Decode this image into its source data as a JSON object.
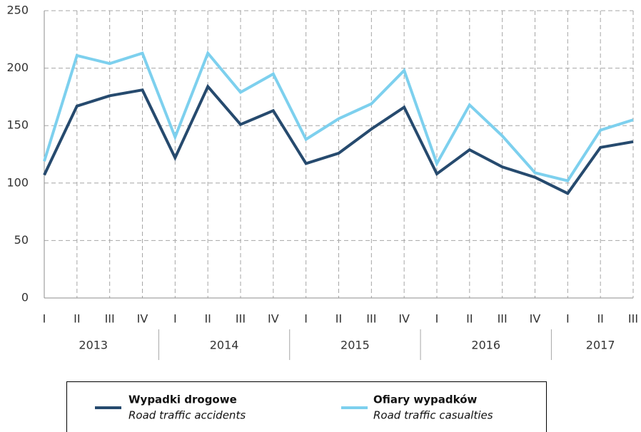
{
  "chart_data": {
    "type": "line",
    "categories": [
      "I",
      "II",
      "III",
      "IV",
      "I",
      "II",
      "III",
      "IV",
      "I",
      "II",
      "III",
      "IV",
      "I",
      "II",
      "III",
      "IV",
      "I",
      "II",
      "III"
    ],
    "year_groups": [
      "2013",
      "2014",
      "2015",
      "2016",
      "2017"
    ],
    "ylim": [
      0,
      250
    ],
    "yticks": [
      0,
      50,
      100,
      150,
      200,
      250
    ],
    "grid": true,
    "series": [
      {
        "name": "Wypadki drogowe",
        "name_en": "Road traffic accidents",
        "color": "#264a6e",
        "values": [
          107,
          167,
          176,
          181,
          122,
          184,
          151,
          163,
          117,
          126,
          147,
          166,
          108,
          129,
          114,
          105,
          91,
          131,
          136
        ]
      },
      {
        "name": "Ofiary wypadków",
        "name_en": "Road traffic casualties",
        "color": "#7dd0ee",
        "values": [
          119,
          211,
          204,
          213,
          140,
          213,
          179,
          195,
          138,
          156,
          169,
          198,
          117,
          168,
          141,
          109,
          102,
          146,
          155
        ]
      }
    ]
  }
}
